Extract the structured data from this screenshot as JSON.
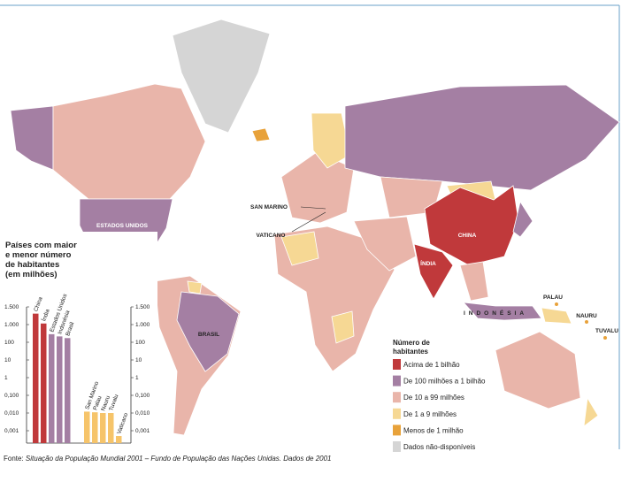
{
  "map": {
    "labels": [
      "ESTADOS UNIDOS",
      "BRASIL",
      "CHINA",
      "ÍNDIA",
      "INDONÉSIA",
      "SAN MARINO",
      "VATICANO",
      "PALAU",
      "NAURU",
      "TUVALU"
    ],
    "legend": {
      "title": [
        "Número de",
        "habitantes"
      ],
      "items": [
        {
          "label": "Acima de 1 bilhão",
          "color": "#c0393b"
        },
        {
          "label": "De 100 milhões a 1 bilhão",
          "color": "#a47fa3"
        },
        {
          "label": "De 10 a 99 milhões",
          "color": "#e9b5aa"
        },
        {
          "label": "De 1 a 9 milhões",
          "color": "#f6d894"
        },
        {
          "label": "Menos de 1 milhão",
          "color": "#e8a23a"
        },
        {
          "label": "Dados não-disponíveis",
          "color": "#d5d5d5"
        }
      ]
    }
  },
  "chart_data": {
    "type": "bar",
    "title": [
      "Países com maior",
      "e menor número",
      "de habitantes",
      "(em milhões)"
    ],
    "categories": [
      "China",
      "Índia",
      "Estados Unidos",
      "Indonésia",
      "Brasil",
      "San Marino",
      "Palau",
      "Nauru",
      "Tuvalu",
      "Vaticano"
    ],
    "values": [
      1285,
      1025,
      285,
      214,
      172,
      0.012,
      0.011,
      0.01,
      0.01,
      0.0005
    ],
    "colors": [
      "#c0393b",
      "#c0393b",
      "#a47fa3",
      "#a47fa3",
      "#a47fa3",
      "#f6c46a",
      "#f6c46a",
      "#f6c46a",
      "#f6c46a",
      "#f6c46a"
    ],
    "ylim": [
      0.0002,
      1500
    ],
    "yticks": [
      {
        "value": 1500,
        "label": "1.500"
      },
      {
        "value": 1000,
        "label": "1.000"
      },
      100,
      10,
      1,
      {
        "value": 0.1,
        "label": "0,100"
      },
      {
        "value": 0.01,
        "label": "0,010"
      },
      {
        "value": 0.001,
        "label": "0,001"
      }
    ]
  },
  "source": {
    "prefix": "Fonte:",
    "text": "Situação da População Mundial 2001 – Fundo de População das Nações Unidas. Dados de 2001"
  }
}
